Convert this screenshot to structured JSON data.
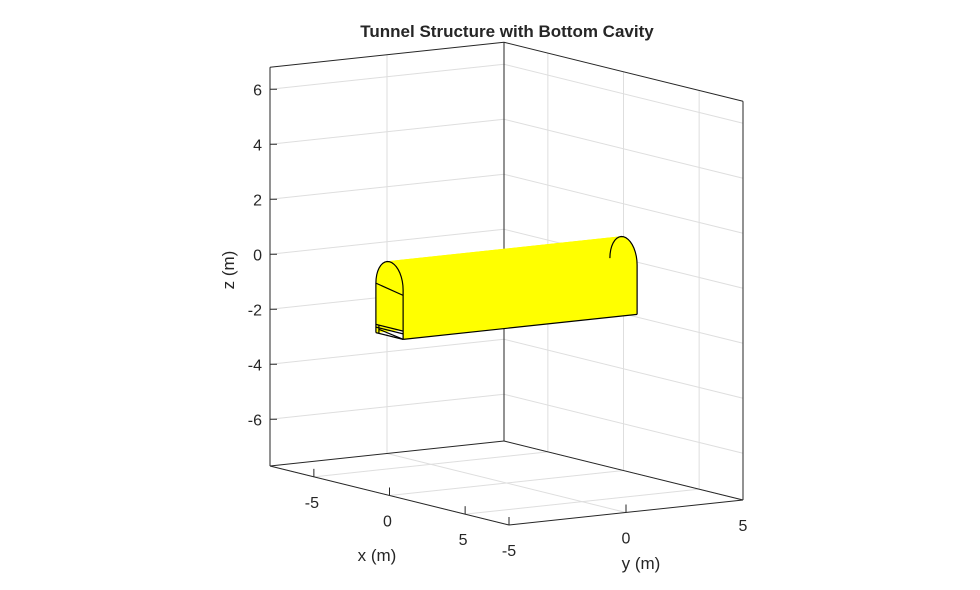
{
  "chart_data": {
    "type": "surface-3d",
    "title": "Tunnel Structure with Bottom Cavity",
    "xlabel": "x (m)",
    "ylabel": "y (m)",
    "zlabel": "z (m)",
    "xlim": [
      -7.9,
      7.9
    ],
    "ylim": [
      -5,
      5
    ],
    "zlim": [
      -7.7,
      6.8
    ],
    "xticks": [
      -5,
      0,
      5
    ],
    "yticks": [
      -5,
      0,
      5
    ],
    "zticks": [
      -6,
      -4,
      -2,
      0,
      2,
      4,
      6
    ],
    "grid": true,
    "face_color": "#ffff00",
    "edge_color": "#000000",
    "tunnel": {
      "x_range": [
        -0.9,
        0.9
      ],
      "y_range": [
        -5,
        5
      ],
      "floor_z": -1.9,
      "wall_top_z": -0.1,
      "arch_radius": 0.9,
      "cavity_top_z": -1.6
    }
  }
}
